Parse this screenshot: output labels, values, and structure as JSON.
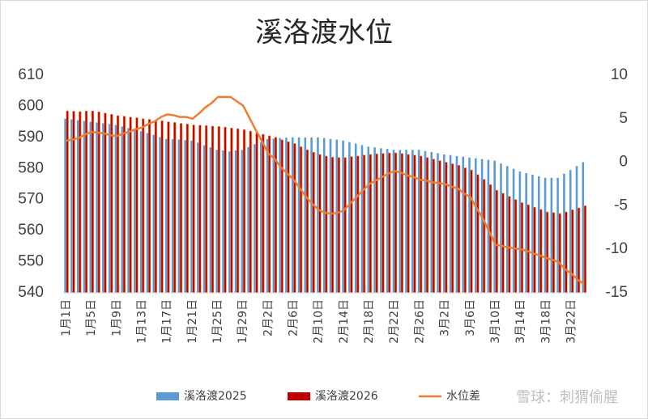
{
  "chart_data": {
    "type": "bar_line",
    "title": "溪洛渡水位",
    "watermark": "雪球：刺猬偷腥",
    "categories": [
      "1月1日",
      null,
      null,
      null,
      "1月5日",
      null,
      null,
      null,
      "1月9日",
      null,
      null,
      null,
      "1月13日",
      null,
      null,
      null,
      "1月17日",
      null,
      null,
      null,
      "1月21日",
      null,
      null,
      null,
      "1月25日",
      null,
      null,
      null,
      "1月29日",
      null,
      null,
      null,
      "2月2日",
      null,
      null,
      null,
      "2月6日",
      null,
      null,
      null,
      "2月10日",
      null,
      null,
      null,
      "2月14日",
      null,
      null,
      null,
      "2月18日",
      null,
      null,
      null,
      "2月22日",
      null,
      null,
      null,
      "2月26日",
      null,
      null,
      null,
      "3月2日",
      null,
      null,
      null,
      "3月6日",
      null,
      null,
      null,
      "3月10日",
      null,
      null,
      null,
      "3月14日",
      null,
      null,
      null,
      "3月18日",
      null,
      null,
      null,
      "3月22日",
      null,
      null
    ],
    "series": [
      {
        "name": "溪洛渡2025",
        "type": "bar",
        "color": "#5b9bd5",
        "values": [
          596,
          595.8,
          595.5,
          595.3,
          595,
          594.8,
          594.5,
          594.3,
          594,
          593.5,
          593,
          592.5,
          592,
          591.4,
          590.8,
          590.1,
          589.5,
          589.4,
          589.3,
          589.1,
          589,
          588.3,
          587.5,
          586.8,
          586,
          585.8,
          585.5,
          585.8,
          586,
          586.9,
          587.8,
          588.6,
          589.5,
          589.6,
          589.8,
          589.9,
          590,
          590,
          590,
          590,
          590,
          589.8,
          589.5,
          589.3,
          589,
          588.5,
          588,
          587.5,
          587,
          586.8,
          586.5,
          586.3,
          586,
          586,
          586,
          586,
          586,
          585.6,
          585.3,
          584.9,
          584.5,
          584.3,
          584,
          583.8,
          583.5,
          583.3,
          583,
          582.8,
          582.5,
          581.6,
          580.8,
          579.9,
          579,
          578.5,
          578,
          577.5,
          577,
          577,
          577,
          578.3,
          579.5,
          580.8,
          582
        ]
      },
      {
        "name": "溪洛渡2026",
        "type": "bar",
        "color": "#c00000",
        "edge_color": "#ed7d31",
        "values": [
          598.5,
          598.4,
          598.3,
          598.5,
          598.5,
          598.2,
          597.8,
          597.4,
          597,
          596.8,
          596.5,
          596.3,
          596,
          595.8,
          595.5,
          595.3,
          595,
          594.8,
          594.5,
          594.3,
          594,
          593.9,
          593.8,
          593.6,
          593.5,
          593.3,
          593,
          592.8,
          592.5,
          592,
          591.5,
          591,
          590.5,
          590,
          589.2,
          588.6,
          588,
          587,
          586,
          585.2,
          584.5,
          584,
          583.6,
          583.5,
          583.5,
          583.8,
          584,
          584.3,
          584.5,
          584.7,
          584.8,
          585,
          585,
          584.8,
          584.5,
          584.3,
          584,
          583.5,
          583,
          582.5,
          582,
          581.5,
          581,
          580.2,
          579.5,
          578,
          576.5,
          574.8,
          573,
          572,
          571,
          570,
          569,
          568.3,
          567.5,
          566.8,
          566,
          565.8,
          565.5,
          566,
          566.7,
          567.3,
          568
        ]
      },
      {
        "name": "水位差",
        "type": "line",
        "axis": "y2",
        "color": "#ed7d31",
        "values": [
          2.5,
          2.6,
          2.8,
          3.2,
          3.5,
          3.4,
          3.3,
          3.1,
          3.0,
          3.3,
          3.5,
          3.8,
          4.0,
          4.4,
          4.7,
          5.2,
          5.5,
          5.4,
          5.2,
          5.2,
          5.0,
          5.6,
          6.3,
          6.8,
          7.5,
          7.5,
          7.5,
          7.0,
          6.5,
          5.1,
          3.7,
          2.4,
          1.0,
          0.4,
          -0.6,
          -1.3,
          -2.0,
          -3.0,
          -4.0,
          -4.8,
          -5.5,
          -5.8,
          -5.9,
          -5.8,
          -5.5,
          -4.7,
          -4.0,
          -3.2,
          -2.5,
          -2.1,
          -1.7,
          -1.3,
          -1.0,
          -1.2,
          -1.5,
          -1.7,
          -2.0,
          -2.1,
          -2.3,
          -2.4,
          -2.5,
          -2.8,
          -3.0,
          -3.6,
          -4.0,
          -5.3,
          -6.5,
          -8.0,
          -9.5,
          -9.6,
          -9.8,
          -9.9,
          -10.0,
          -10.2,
          -10.5,
          -10.7,
          -11.0,
          -11.2,
          -11.5,
          -12.3,
          -12.8,
          -13.5,
          -14.0
        ]
      }
    ],
    "ylim": [
      540,
      610
    ],
    "yticks": [
      540,
      550,
      560,
      570,
      580,
      590,
      600,
      610
    ],
    "y2lim": [
      -15,
      10
    ],
    "y2ticks": [
      -15,
      -10,
      -5,
      0,
      5,
      10
    ],
    "legend": "bottom"
  }
}
